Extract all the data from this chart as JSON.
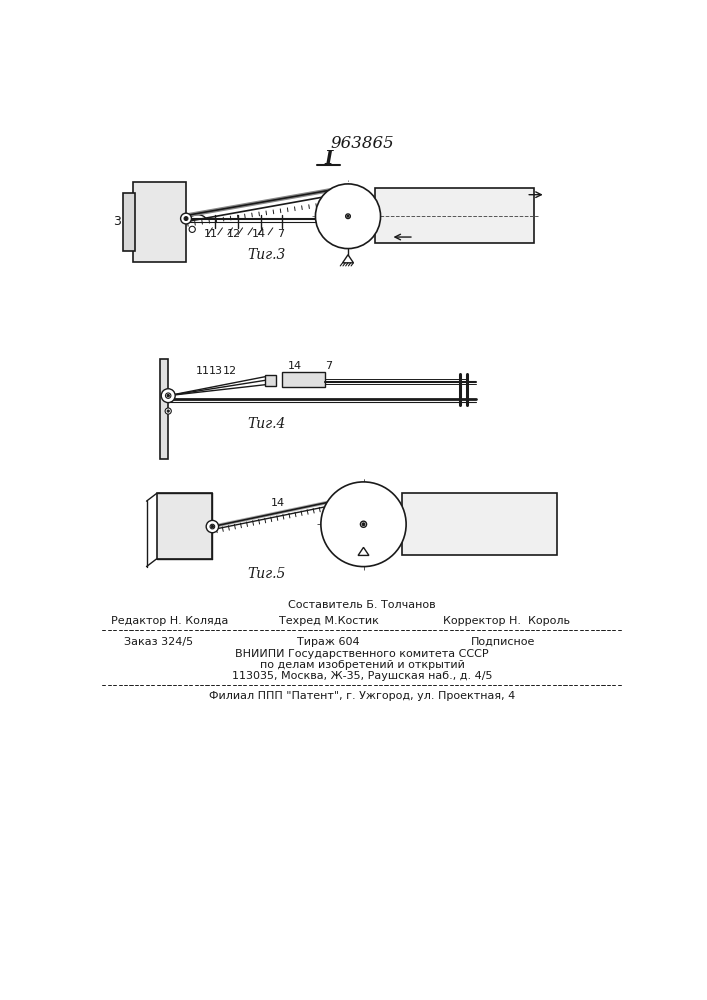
{
  "patent_number": "963865",
  "fig3_label": "Τиг.3",
  "fig4_label": "Τиг.4",
  "fig5_label": "Τиг.5",
  "footer_line1_left": "Редактор Н. Коляда",
  "footer_line1_center": "Техред М.Костик",
  "footer_line1_right": "Корректор Н.  Король",
  "footer_sostavitel": "Составитель Б. Толчанов",
  "footer_zakaz": "Заказ 324/5",
  "footer_tirazh": "Тираж 604",
  "footer_podpisnoe": "Подписное",
  "footer_vniip1": "ВНИИПИ Государственного комитета СССР",
  "footer_vniip2": "по делам изобретений и открытий",
  "footer_addr": "113035, Москва, Ж-35, Раушская наб., д. 4/5",
  "footer_filial": "Филиал ППП \"Патент\", г. Ужгород, ул. Проектная, 4",
  "bg_color": "#ffffff",
  "line_color": "#1a1a1a"
}
